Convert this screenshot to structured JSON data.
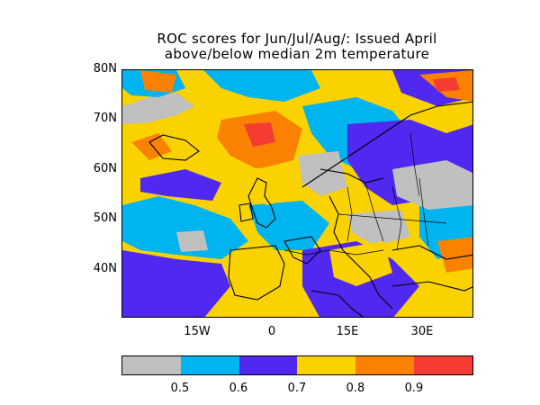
{
  "map": {
    "title_line1": "ROC scores for Jun/Jul/Aug/: Issued April",
    "title_line2": "above/below median 2m temperature",
    "lat_labels": [
      "80N",
      "70N",
      "60N",
      "50N",
      "40N"
    ],
    "lon_labels": [
      "15W",
      "0",
      "15E",
      "30E"
    ],
    "extent": {
      "lon_min": -30,
      "lon_max": 40,
      "lat_min": 30,
      "lat_max": 80
    }
  },
  "colorbar": {
    "colors": [
      "#c0c0c0",
      "#00b4f0",
      "#5028f0",
      "#fad200",
      "#fa8200",
      "#f53c32"
    ],
    "color_names": [
      "grey",
      "light-blue",
      "blue-purple",
      "yellow",
      "orange",
      "red"
    ],
    "tick_labels": [
      "0.5",
      "0.6",
      "0.7",
      "0.8",
      "0.9"
    ]
  }
}
